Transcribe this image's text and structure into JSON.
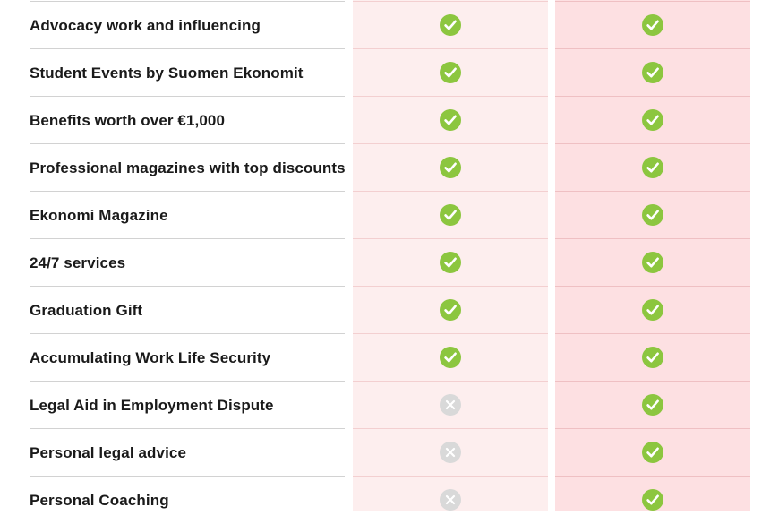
{
  "colors": {
    "basic_column_bg": "#fdeeee",
    "plus_column_bg": "#fde0e2",
    "check_green": "#8cc63f",
    "cross_gray": "#d9d9d9"
  },
  "rows": [
    {
      "label": "Advocacy work and influencing",
      "basic": "check",
      "plus": "check"
    },
    {
      "label": "Student Events by Suomen Ekonomit",
      "basic": "check",
      "plus": "check"
    },
    {
      "label": "Benefits worth over €1,000",
      "basic": "check",
      "plus": "check"
    },
    {
      "label": "Professional magazines with top discounts",
      "basic": "check",
      "plus": "check"
    },
    {
      "label": "Ekonomi Magazine",
      "basic": "check",
      "plus": "check"
    },
    {
      "label": "24/7 services",
      "basic": "check",
      "plus": "check"
    },
    {
      "label": "Graduation Gift",
      "basic": "check",
      "plus": "check"
    },
    {
      "label": "Accumulating Work Life Security",
      "basic": "check",
      "plus": "check"
    },
    {
      "label": "Legal Aid in Employment Dispute",
      "basic": "cross",
      "plus": "check"
    },
    {
      "label": "Personal legal advice",
      "basic": "cross",
      "plus": "check"
    },
    {
      "label": "Personal Coaching",
      "basic": "cross",
      "plus": "check"
    }
  ]
}
